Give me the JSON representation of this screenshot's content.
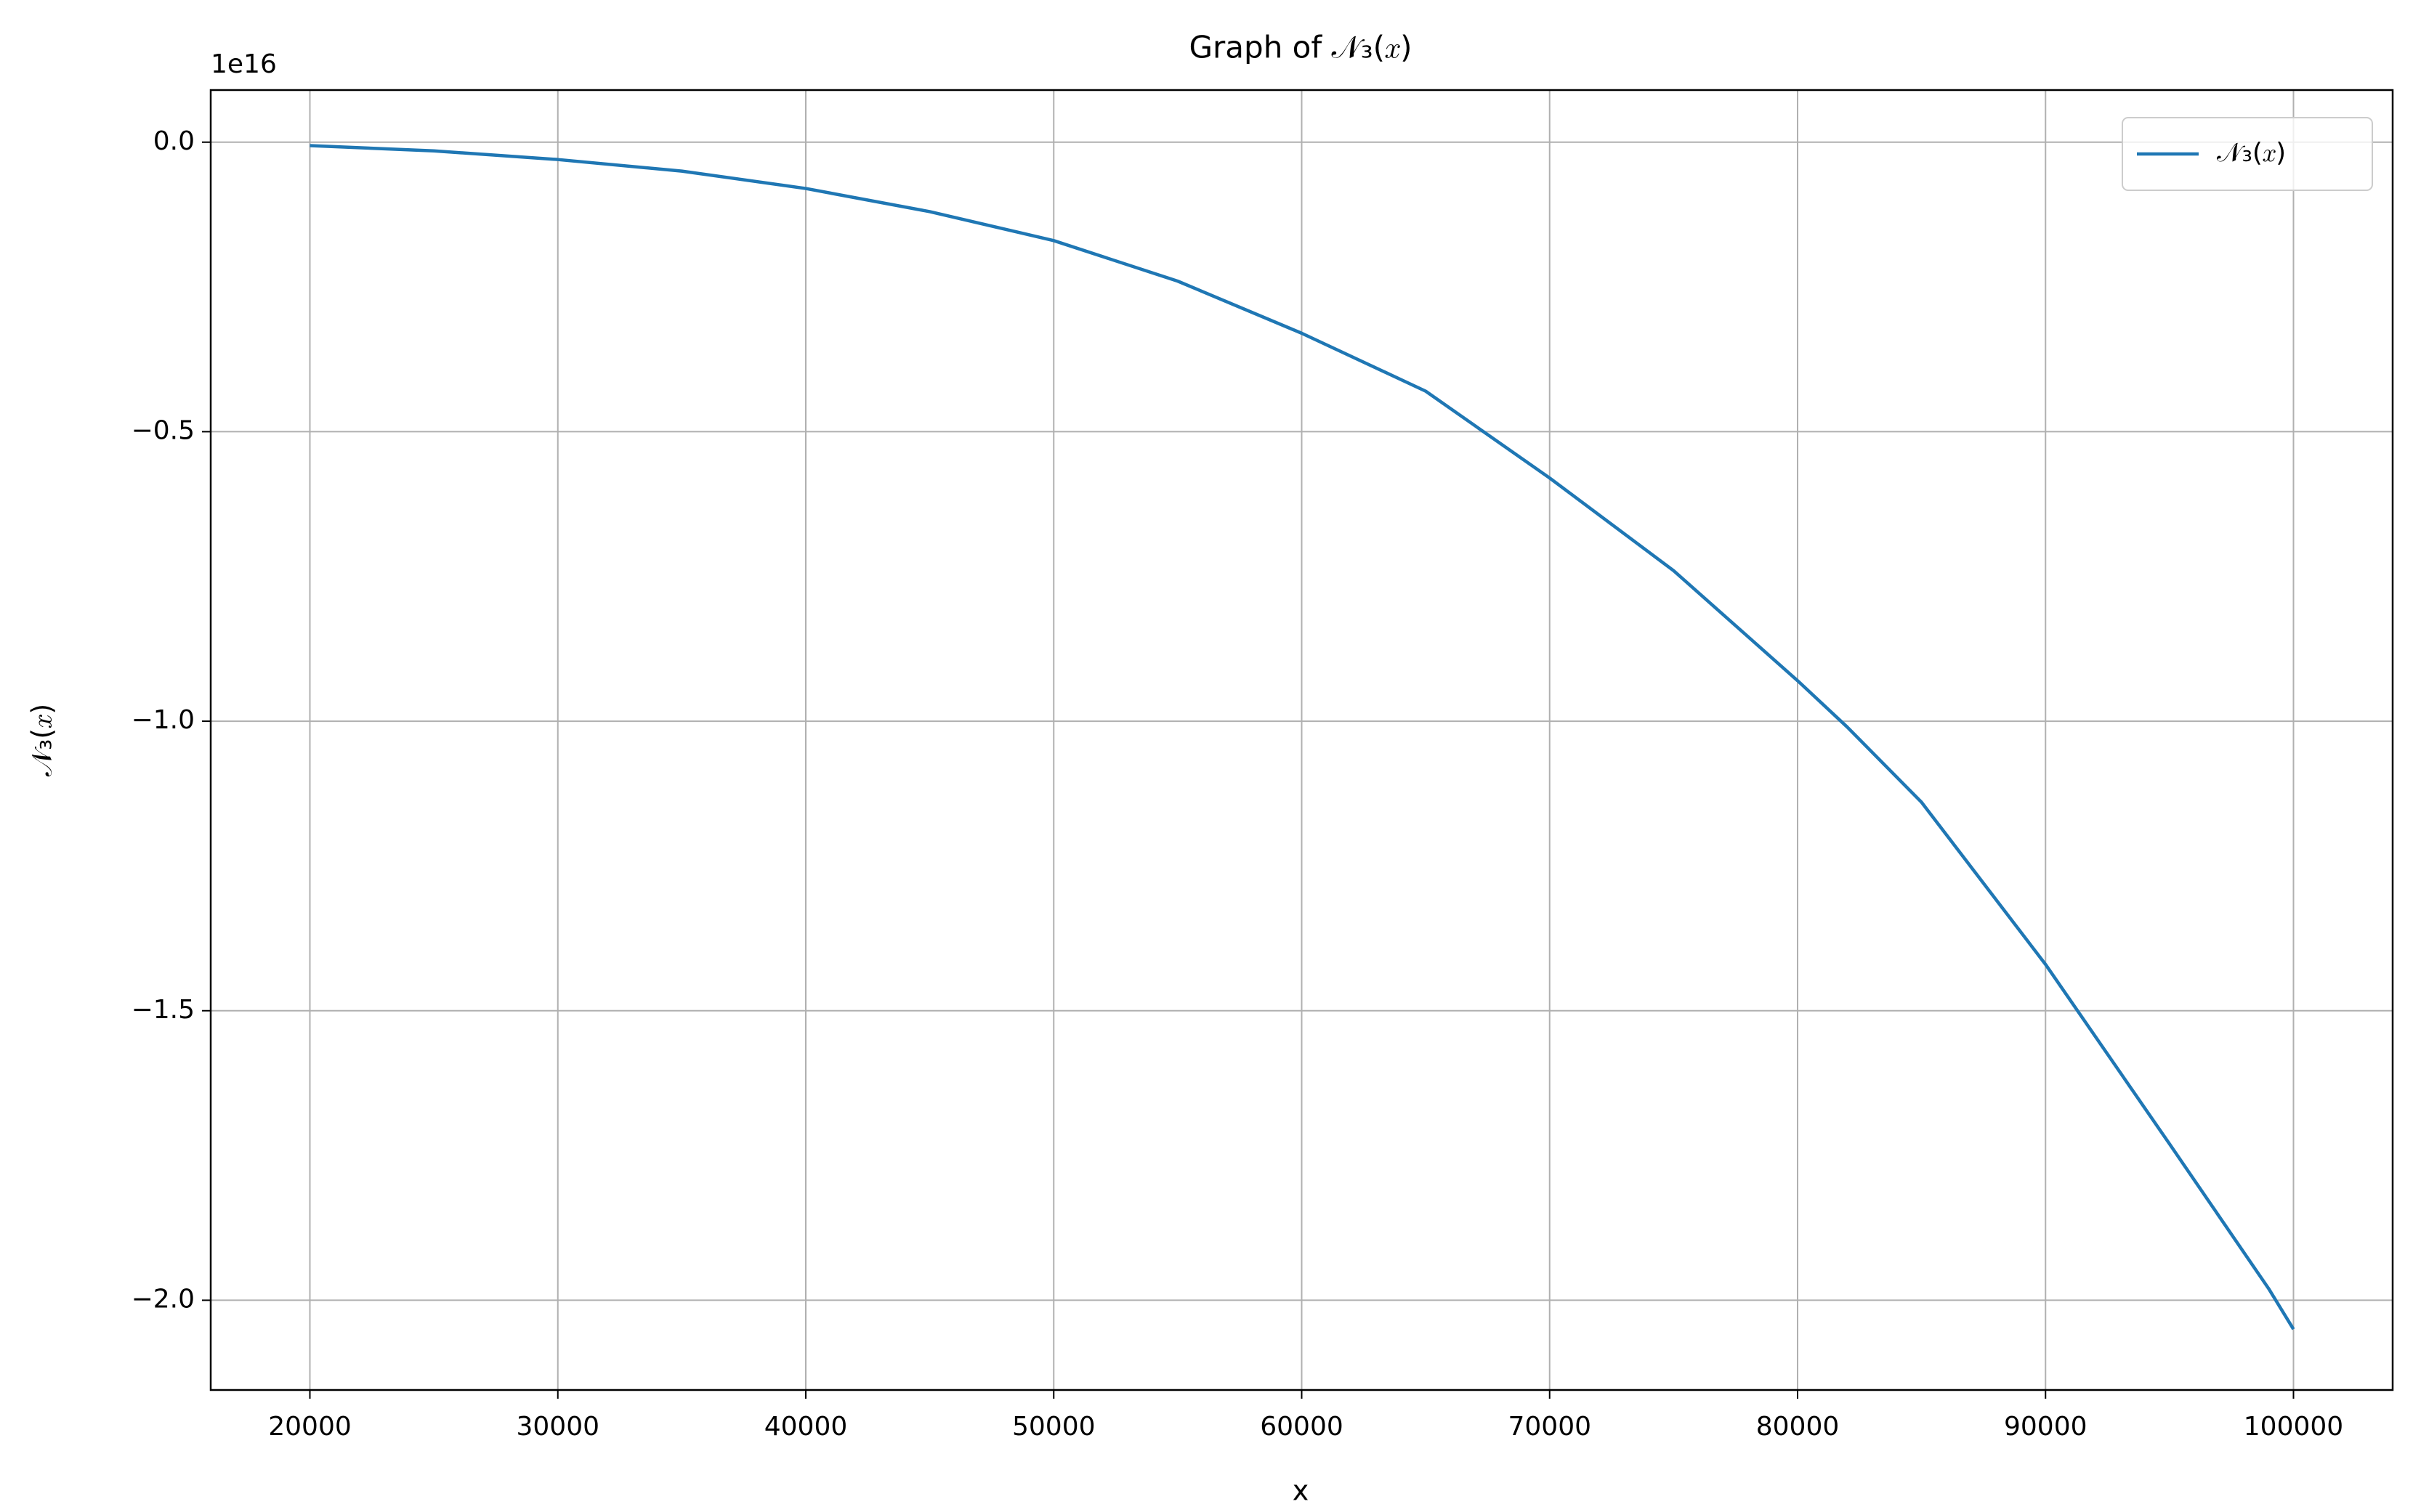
{
  "chart_data": {
    "type": "line",
    "title": "Graph of 𝒩₃(𝑥)",
    "x_label": "x",
    "y_label": "𝒩₃(𝑥)",
    "y_offset_label": "1e16",
    "x": [
      20000,
      25000,
      30000,
      35000,
      40000,
      45000,
      50000,
      55000,
      60000,
      65000,
      67000,
      70000,
      75000,
      80000,
      82000,
      85000,
      90000,
      95000,
      99000,
      100000
    ],
    "series": [
      {
        "name": "𝒩₃(𝑥)",
        "color": "#1f77b4",
        "values": [
          -0.006,
          -0.015,
          -0.03,
          -0.05,
          -0.08,
          -0.12,
          -0.17,
          -0.24,
          -0.33,
          -0.43,
          -0.49,
          -0.58,
          -0.74,
          -0.93,
          -1.01,
          -1.14,
          -1.42,
          -1.73,
          -1.98,
          -2.05
        ]
      }
    ],
    "xlim": [
      16000,
      104000
    ],
    "xticks": [
      20000,
      30000,
      40000,
      50000,
      60000,
      70000,
      80000,
      90000,
      100000
    ],
    "ylim": [
      -2.155,
      0.09
    ],
    "yticks": [
      {
        "value": 0,
        "label": "0.0"
      },
      {
        "value": -0.5,
        "label": "−0.5"
      },
      {
        "value": -1,
        "label": "−1.0"
      },
      {
        "value": -1.5,
        "label": "−1.5"
      },
      {
        "value": -2,
        "label": "−2.0"
      }
    ],
    "grid": true,
    "legend": "upper right"
  }
}
